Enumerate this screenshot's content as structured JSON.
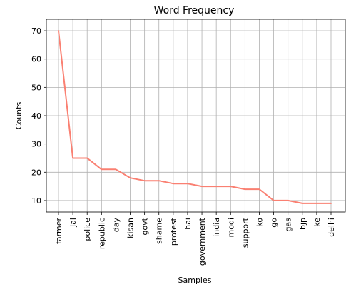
{
  "chart_data": {
    "type": "line",
    "title": "Word Frequency",
    "xlabel": "Samples",
    "ylabel": "Counts",
    "categories": [
      "farmer",
      "jai",
      "police",
      "republic",
      "day",
      "kisan",
      "govt",
      "shame",
      "protest",
      "hai",
      "government",
      "india",
      "modi",
      "support",
      "ko",
      "go",
      "gas",
      "bjp",
      "ke",
      "delhi"
    ],
    "values": [
      70,
      25,
      25,
      21,
      21,
      18,
      17,
      17,
      16,
      16,
      15,
      15,
      15,
      14,
      14,
      10,
      10,
      9,
      9,
      9
    ],
    "ylim": [
      5.95,
      74.05
    ],
    "yticks": [
      10,
      20,
      30,
      40,
      50,
      60,
      70
    ],
    "grid": true,
    "color": "#fa8072"
  }
}
